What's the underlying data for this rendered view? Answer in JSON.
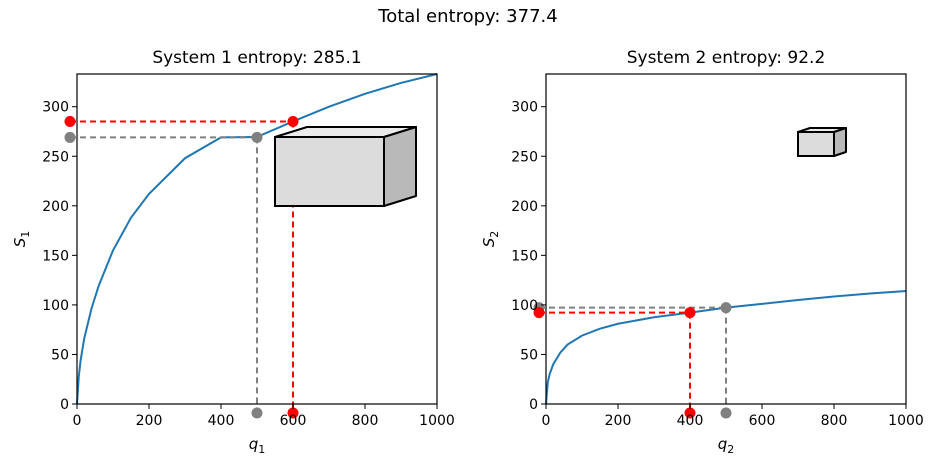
{
  "figure": {
    "suptitle": "Total entropy: 377.4"
  },
  "chart_data": [
    {
      "type": "line",
      "title": "System 1 entropy: 285.1",
      "xlabel": "q",
      "xlabel_sub": "1",
      "ylabel": "S",
      "ylabel_sub": "1",
      "xlim": [
        0,
        1000
      ],
      "ylim": [
        0,
        333
      ],
      "xticks": [
        0,
        200,
        400,
        600,
        800,
        1000
      ],
      "yticks": [
        0,
        50,
        100,
        150,
        200,
        250,
        300
      ],
      "grid": false,
      "curve": {
        "color": "#1f77b4",
        "x": [
          0,
          5,
          10,
          20,
          40,
          60,
          100,
          150,
          200,
          300,
          400,
          500,
          600,
          700,
          800,
          900,
          1000
        ],
        "y": [
          0,
          28,
          44,
          66,
          96,
          119,
          155,
          188,
          212,
          248,
          269,
          269.5,
          285.1,
          300,
          313,
          324,
          333
        ]
      },
      "markers": [
        {
          "name": "previous",
          "color": "#808080",
          "x": 500,
          "y": 269
        },
        {
          "name": "current",
          "color": "#ff0000",
          "x": 600,
          "y": 285.1
        }
      ],
      "box_icon": "large-box"
    },
    {
      "type": "line",
      "title": "System 2 entropy: 92.2",
      "xlabel": "q",
      "xlabel_sub": "2",
      "ylabel": "S",
      "ylabel_sub": "2",
      "xlim": [
        0,
        1000
      ],
      "ylim": [
        0,
        333
      ],
      "xticks": [
        0,
        200,
        400,
        600,
        800,
        1000
      ],
      "yticks": [
        0,
        50,
        100,
        150,
        200,
        250,
        300
      ],
      "grid": false,
      "curve": {
        "color": "#1f77b4",
        "x": [
          0,
          5,
          10,
          20,
          40,
          60,
          100,
          150,
          200,
          300,
          400,
          500,
          600,
          700,
          800,
          900,
          1000
        ],
        "y": [
          0,
          22,
          30,
          40,
          52,
          60,
          69,
          76,
          81,
          87.5,
          92.2,
          97.2,
          101,
          105,
          108.5,
          111.5,
          114
        ]
      },
      "markers": [
        {
          "name": "previous",
          "color": "#808080",
          "x": 500,
          "y": 97.2
        },
        {
          "name": "current",
          "color": "#ff0000",
          "x": 400,
          "y": 92.2
        }
      ],
      "box_icon": "small-box"
    }
  ]
}
